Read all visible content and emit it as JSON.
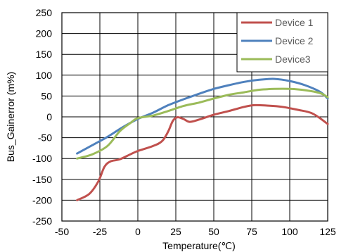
{
  "chart_data": {
    "type": "line",
    "xlabel": "Temperature(℃)",
    "ylabel": "Bus_Gainerror (m%)",
    "xlim": [
      -50,
      125
    ],
    "ylim": [
      -250,
      250
    ],
    "x_ticks": [
      -50,
      -25,
      0,
      25,
      50,
      75,
      100,
      125
    ],
    "y_ticks": [
      -250,
      -200,
      -150,
      -100,
      -50,
      0,
      50,
      100,
      150,
      200,
      250
    ],
    "grid": true,
    "legend_position": "top-right",
    "series": [
      {
        "name": "Device 1",
        "color": "#c0504d",
        "points": [
          [
            -40,
            -200
          ],
          [
            -32,
            -185
          ],
          [
            -26,
            -155
          ],
          [
            -22,
            -120
          ],
          [
            -18,
            -107
          ],
          [
            -12,
            -102
          ],
          [
            -5,
            -90
          ],
          [
            0,
            -82
          ],
          [
            10,
            -70
          ],
          [
            16,
            -58
          ],
          [
            20,
            -35
          ],
          [
            23,
            -10
          ],
          [
            26,
            -1
          ],
          [
            30,
            -5
          ],
          [
            34,
            -12
          ],
          [
            40,
            -7
          ],
          [
            50,
            5
          ],
          [
            60,
            14
          ],
          [
            70,
            24
          ],
          [
            77,
            28
          ],
          [
            85,
            27
          ],
          [
            95,
            24
          ],
          [
            105,
            17
          ],
          [
            115,
            8
          ],
          [
            125,
            -17
          ]
        ]
      },
      {
        "name": "Device 2",
        "color": "#4f81bd",
        "points": [
          [
            -40,
            -88
          ],
          [
            -30,
            -68
          ],
          [
            -20,
            -48
          ],
          [
            -10,
            -25
          ],
          [
            0,
            -5
          ],
          [
            10,
            10
          ],
          [
            20,
            28
          ],
          [
            30,
            42
          ],
          [
            40,
            55
          ],
          [
            50,
            67
          ],
          [
            60,
            76
          ],
          [
            70,
            84
          ],
          [
            80,
            89
          ],
          [
            90,
            91
          ],
          [
            100,
            86
          ],
          [
            110,
            76
          ],
          [
            120,
            60
          ],
          [
            125,
            44
          ]
        ]
      },
      {
        "name": "Device3",
        "color": "#9bbb59",
        "points": [
          [
            -40,
            -100
          ],
          [
            -30,
            -90
          ],
          [
            -20,
            -70
          ],
          [
            -12,
            -35
          ],
          [
            -5,
            -15
          ],
          [
            0,
            -3
          ],
          [
            10,
            3
          ],
          [
            20,
            14
          ],
          [
            30,
            26
          ],
          [
            40,
            34
          ],
          [
            50,
            44
          ],
          [
            60,
            53
          ],
          [
            70,
            59
          ],
          [
            80,
            65
          ],
          [
            90,
            67
          ],
          [
            100,
            67
          ],
          [
            110,
            64
          ],
          [
            120,
            57
          ],
          [
            125,
            47
          ]
        ]
      }
    ]
  }
}
